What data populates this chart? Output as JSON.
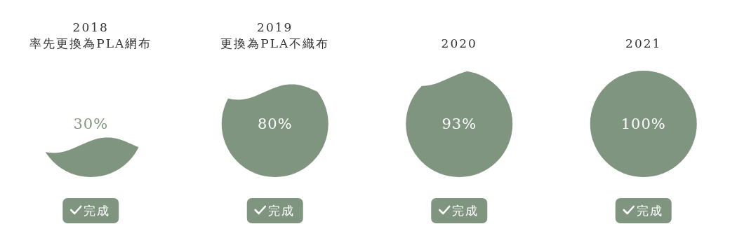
{
  "chart_data": {
    "type": "other",
    "categories": [
      "2018\n率先更換為PLA網布",
      "2019\n更換為PLA不織布",
      "2020",
      "2021"
    ],
    "values": [
      30,
      80,
      93,
      100
    ],
    "value_labels": [
      "30%",
      "80%",
      "93%",
      "100%"
    ],
    "color": "#7f957f",
    "annotations": [
      "完成",
      "完成",
      "完成",
      "完成"
    ]
  }
}
